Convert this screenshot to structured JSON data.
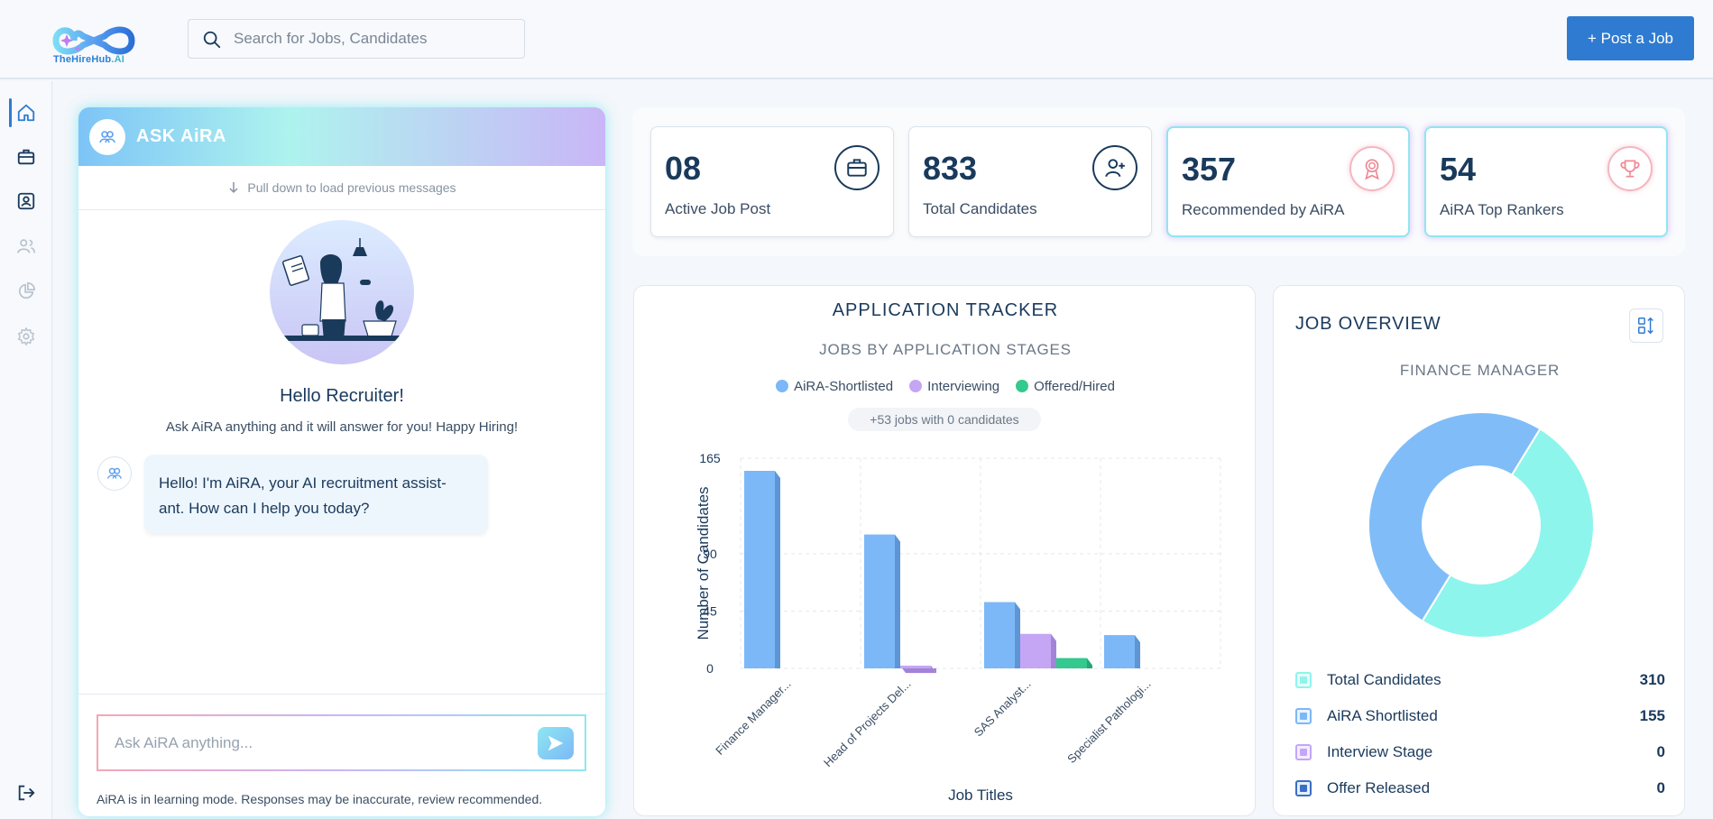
{
  "brand": {
    "name": "TheHireHub",
    "suffix": ".AI"
  },
  "search": {
    "placeholder": "Search for Jobs, Candidates"
  },
  "header": {
    "post_job_label": "+ Post a Job"
  },
  "sidebar": {
    "items": [
      {
        "name": "home",
        "icon": "home-icon",
        "active": true
      },
      {
        "name": "jobs",
        "icon": "briefcase-icon",
        "active": false
      },
      {
        "name": "candidates",
        "icon": "contact-icon",
        "active": false
      },
      {
        "name": "team",
        "icon": "users-icon",
        "active": false
      },
      {
        "name": "reports",
        "icon": "pie-chart-icon",
        "active": false
      },
      {
        "name": "settings",
        "icon": "gear-icon",
        "active": false
      }
    ],
    "logout_icon": "logout-icon"
  },
  "chat": {
    "title": "ASK AiRA",
    "pull_hint": "Pull down to load previous messages",
    "greeting": "Hello Recruiter!",
    "subtitle": "Ask AiRA anything and it will answer for you! Happy Hiring!",
    "bot_message": "Hello! I'm AiRA, your AI recruitment assist- ant. How can I help you today?",
    "input_placeholder": "Ask AiRA anything...",
    "disclaimer": "AiRA is in learning mode. Responses may be inaccurate, review recommended."
  },
  "stats": [
    {
      "value": "08",
      "label": "Active Job Post",
      "icon": "briefcase-icon"
    },
    {
      "value": "833",
      "label": "Total Candidates",
      "icon": "add-user-icon"
    },
    {
      "value": "357",
      "label": "Recommended by AiRA",
      "icon": "award-icon"
    },
    {
      "value": "54",
      "label": "AiRA Top Rankers",
      "icon": "trophy-icon"
    }
  ],
  "tracker": {
    "title": "APPLICATION TRACKER",
    "subtitle": "JOBS BY APPLICATION STAGES",
    "note": "+53 jobs with 0 candidates"
  },
  "chart_data": {
    "type": "bar",
    "categories": [
      "Finance Manager...",
      "Head of Projects Del...",
      "SAS Analyst...",
      "Specialist Pathologi..."
    ],
    "series": [
      {
        "name": "AiRA-Shortlisted",
        "color": "#7cb8f7",
        "values": [
          155,
          105,
          52,
          26
        ]
      },
      {
        "name": "Interviewing",
        "color": "#c4a6f5",
        "values": [
          0,
          2,
          27,
          0
        ]
      },
      {
        "name": "Offered/Hired",
        "color": "#34c98e",
        "values": [
          0,
          0,
          8,
          0
        ]
      }
    ],
    "xlabel": "Job Titles",
    "ylabel": "Number of Candidates",
    "yticks": [
      0,
      45,
      90,
      165
    ],
    "ylim": [
      0,
      165
    ],
    "grid": true,
    "legend": "top-center"
  },
  "overview": {
    "title": "JOB OVERVIEW",
    "job_name": "FINANCE MANAGER",
    "items": [
      {
        "label": "Total Candidates",
        "value": "310",
        "color": "#8ef5ec"
      },
      {
        "label": "AiRA Shortlisted",
        "value": "155",
        "color": "#7cb8f7"
      },
      {
        "label": "Interview Stage",
        "value": "0",
        "color": "#c4a6f5"
      },
      {
        "label": "Offer Released",
        "value": "0",
        "color": "#3a6fc4"
      }
    ],
    "donut": [
      {
        "label": "Total Candidates",
        "value": 155,
        "color": "#8ef5ec"
      },
      {
        "label": "AiRA Shortlisted",
        "value": 155,
        "color": "#80bdf8"
      }
    ]
  }
}
